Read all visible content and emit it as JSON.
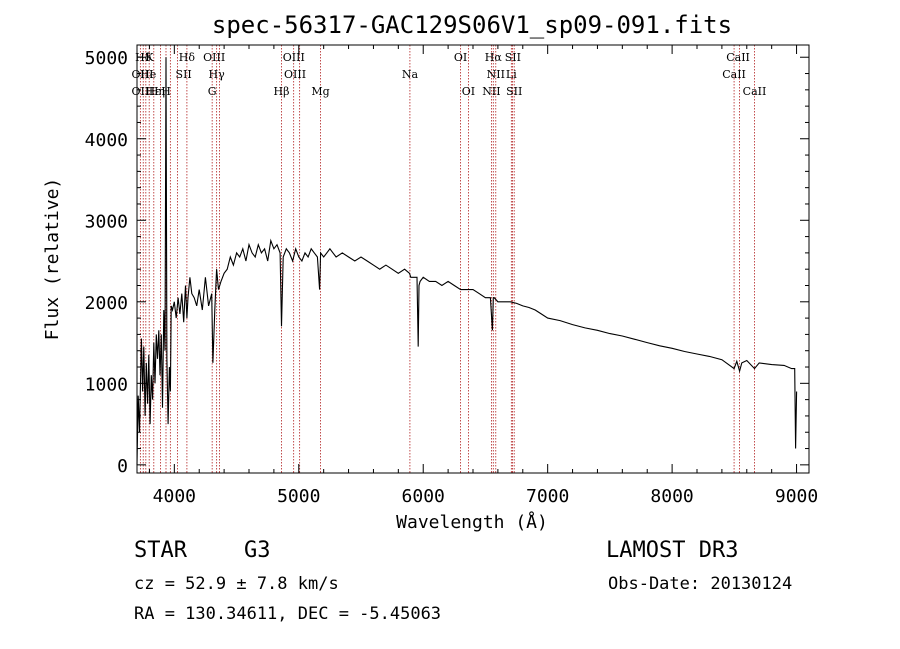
{
  "chart_data": {
    "type": "line",
    "title": "spec-56317-GAC129S06V1_sp09-091.fits",
    "xlabel": "Wavelength (Å)",
    "ylabel": "Flux (relative)",
    "xlim": [
      3700,
      9100
    ],
    "ylim": [
      -100,
      5150
    ],
    "xticks": [
      4000,
      5000,
      6000,
      7000,
      8000,
      9000
    ],
    "yticks": [
      0,
      1000,
      2000,
      3000,
      4000,
      5000
    ],
    "xtick_labels": [
      "4000",
      "5000",
      "6000",
      "7000",
      "8000",
      "9000"
    ],
    "ytick_labels": [
      "0",
      "1000",
      "2000",
      "3000",
      "4000",
      "5000"
    ],
    "line_color": "#000000",
    "marker_line_color": "#b22222",
    "series": [
      {
        "name": "spectrum",
        "x": [
          3700,
          3710,
          3720,
          3735,
          3745,
          3755,
          3765,
          3775,
          3785,
          3795,
          3805,
          3815,
          3825,
          3835,
          3845,
          3855,
          3865,
          3875,
          3885,
          3895,
          3905,
          3915,
          3925,
          3933,
          3940,
          3950,
          3960,
          3968,
          3975,
          3985,
          4000,
          4015,
          4030,
          4045,
          4060,
          4075,
          4090,
          4101,
          4110,
          4125,
          4140,
          4160,
          4180,
          4200,
          4225,
          4250,
          4275,
          4300,
          4310,
          4325,
          4340,
          4355,
          4375,
          4400,
          4425,
          4450,
          4475,
          4500,
          4525,
          4550,
          4575,
          4600,
          4625,
          4650,
          4675,
          4700,
          4725,
          4750,
          4775,
          4800,
          4825,
          4850,
          4861,
          4875,
          4900,
          4925,
          4950,
          4975,
          5000,
          5025,
          5050,
          5075,
          5100,
          5125,
          5150,
          5167,
          5175,
          5200,
          5225,
          5250,
          5275,
          5300,
          5350,
          5400,
          5450,
          5500,
          5550,
          5600,
          5650,
          5700,
          5750,
          5800,
          5850,
          5890,
          5900,
          5950,
          5960,
          5966,
          5975,
          6000,
          6050,
          6100,
          6150,
          6200,
          6250,
          6300,
          6350,
          6400,
          6450,
          6500,
          6540,
          6556,
          6563,
          6570,
          6600,
          6650,
          6700,
          6750,
          6800,
          6850,
          6900,
          6950,
          7000,
          7100,
          7200,
          7300,
          7400,
          7500,
          7600,
          7700,
          7800,
          7900,
          8000,
          8100,
          8200,
          8300,
          8400,
          8498,
          8520,
          8542,
          8560,
          8600,
          8662,
          8700,
          8800,
          8900,
          8960,
          8985,
          8992,
          9000
        ],
        "y": [
          0,
          850,
          400,
          1550,
          900,
          1450,
          600,
          1250,
          750,
          1350,
          500,
          1100,
          800,
          1500,
          1000,
          1600,
          1300,
          1650,
          1100,
          1600,
          700,
          1900,
          1400,
          5000,
          1300,
          500,
          1200,
          900,
          1950,
          1900,
          2000,
          1800,
          2050,
          1850,
          2100,
          1750,
          2200,
          1800,
          2050,
          2300,
          2100,
          2050,
          1950,
          2150,
          1900,
          2300,
          1950,
          2100,
          1250,
          1900,
          2400,
          2150,
          2250,
          2350,
          2400,
          2550,
          2450,
          2600,
          2550,
          2650,
          2500,
          2700,
          2600,
          2550,
          2700,
          2600,
          2650,
          2500,
          2750,
          2650,
          2700,
          2600,
          1700,
          2550,
          2650,
          2600,
          2500,
          2650,
          2550,
          2500,
          2600,
          2550,
          2650,
          2600,
          2550,
          2150,
          2600,
          2550,
          2600,
          2650,
          2600,
          2550,
          2600,
          2550,
          2500,
          2550,
          2500,
          2450,
          2400,
          2450,
          2400,
          2350,
          2400,
          2350,
          2300,
          2300,
          1450,
          2200,
          2250,
          2300,
          2250,
          2250,
          2200,
          2250,
          2200,
          2150,
          2150,
          2150,
          2100,
          2050,
          2050,
          1650,
          2050,
          2050,
          2000,
          2000,
          2000,
          1980,
          1950,
          1930,
          1900,
          1850,
          1800,
          1770,
          1720,
          1680,
          1650,
          1610,
          1580,
          1540,
          1500,
          1460,
          1430,
          1390,
          1360,
          1330,
          1290,
          1180,
          1270,
          1150,
          1250,
          1280,
          1180,
          1250,
          1230,
          1220,
          1180,
          1180,
          200,
          900
        ]
      }
    ],
    "line_markers": [
      {
        "label": "Hδ",
        "x": 3750,
        "row": 0
      },
      {
        "label": "K",
        "x": 3800,
        "row": 0
      },
      {
        "label": "Hδ",
        "x": 4101,
        "row": 0
      },
      {
        "label": "OIII",
        "x": 4320,
        "row": 0
      },
      {
        "label": "OIII",
        "x": 4960,
        "row": 0
      },
      {
        "label": "OI",
        "x": 6300,
        "row": 0
      },
      {
        "label": "Hα",
        "x": 6563,
        "row": 0
      },
      {
        "label": "SII",
        "x": 6720,
        "row": 0
      },
      {
        "label": "CaII",
        "x": 8530,
        "row": 0
      },
      {
        "label": "OII",
        "x": 3727,
        "row": 1
      },
      {
        "label": "He",
        "x": 3790,
        "row": 1
      },
      {
        "label": "I",
        "x": 3815,
        "row": 1
      },
      {
        "label": "SII",
        "x": 4075,
        "row": 1
      },
      {
        "label": "Hγ",
        "x": 4340,
        "row": 1
      },
      {
        "label": "OIII",
        "x": 4970,
        "row": 1
      },
      {
        "label": "Na",
        "x": 5893,
        "row": 1
      },
      {
        "label": "NII",
        "x": 6583,
        "row": 1
      },
      {
        "label": "Li",
        "x": 6708,
        "row": 1
      },
      {
        "label": "CaII",
        "x": 8498,
        "row": 1
      },
      {
        "label": "OII",
        "x": 3727,
        "row": 2
      },
      {
        "label": "Hε",
        "x": 3830,
        "row": 2
      },
      {
        "label": "Hη",
        "x": 3860,
        "row": 2
      },
      {
        "label": "H",
        "x": 3933,
        "row": 2
      },
      {
        "label": "G",
        "x": 4304,
        "row": 2
      },
      {
        "label": "Hβ",
        "x": 4861,
        "row": 2
      },
      {
        "label": "Mg",
        "x": 5175,
        "row": 2
      },
      {
        "label": "OI",
        "x": 6363,
        "row": 2
      },
      {
        "label": "NII",
        "x": 6548,
        "row": 2
      },
      {
        "label": "SII",
        "x": 6731,
        "row": 2
      },
      {
        "label": "CaII",
        "x": 8662,
        "row": 2
      }
    ],
    "marker_lines_x": [
      3727,
      3750,
      3771,
      3798,
      3835,
      3889,
      3933,
      3968,
      4026,
      4101,
      4304,
      4340,
      4363,
      4861,
      4959,
      5007,
      5175,
      5893,
      6300,
      6363,
      6548,
      6563,
      6583,
      6708,
      6717,
      6731,
      8498,
      8542,
      8662
    ]
  },
  "footer": {
    "object_class": "STAR",
    "subclass": "G3",
    "survey": "LAMOST DR3",
    "redshift": "cz = 52.9 ± 7.8 km/s",
    "obs_date": "Obs-Date: 20130124",
    "coords": "RA = 130.34611, DEC =  -5.45063"
  }
}
